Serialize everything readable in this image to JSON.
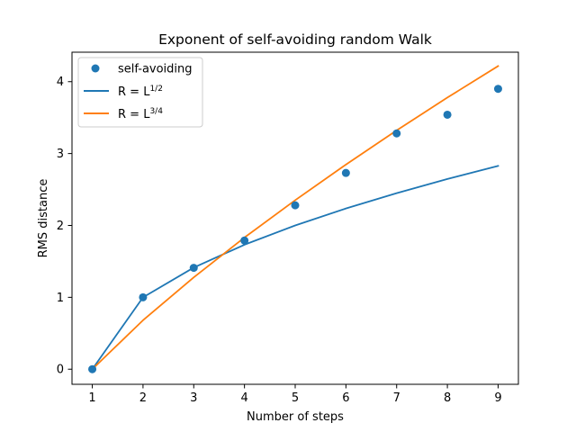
{
  "chart_data": {
    "type": "line",
    "title": "Exponent of self-avoiding random Walk",
    "xlabel": "Number of steps",
    "ylabel": "RMS distance",
    "xlim": [
      0.6,
      9.4
    ],
    "ylim": [
      -0.21,
      4.41
    ],
    "xticks": [
      1,
      2,
      3,
      4,
      5,
      6,
      7,
      8,
      9
    ],
    "yticks": [
      0,
      1,
      2,
      3,
      4
    ],
    "grid": false,
    "legend_position": "upper left",
    "series": [
      {
        "name": "self-avoiding",
        "kind": "scatter",
        "color": "#1f77b4",
        "x": [
          1,
          2,
          3,
          4,
          5,
          6,
          7,
          8,
          9
        ],
        "y": [
          0.0,
          1.0,
          1.41,
          1.79,
          2.28,
          2.73,
          3.28,
          3.54,
          3.9
        ]
      },
      {
        "name": "R = L",
        "name_exponent": "1/2",
        "kind": "line",
        "color": "#1f77b4",
        "x": [
          1,
          2,
          3,
          4,
          5,
          6,
          7,
          8,
          9
        ],
        "y": [
          0.0,
          1.0,
          1.414,
          1.732,
          2.0,
          2.236,
          2.449,
          2.646,
          2.828
        ]
      },
      {
        "name": "R = L",
        "name_exponent": "3/4",
        "kind": "line",
        "color": "#ff7f0e",
        "x": [
          1,
          2,
          3,
          4,
          5,
          6,
          7,
          8,
          9
        ],
        "y": [
          0.0,
          0.681,
          1.278,
          1.832,
          2.351,
          2.847,
          3.322,
          3.779,
          4.217
        ]
      }
    ]
  }
}
